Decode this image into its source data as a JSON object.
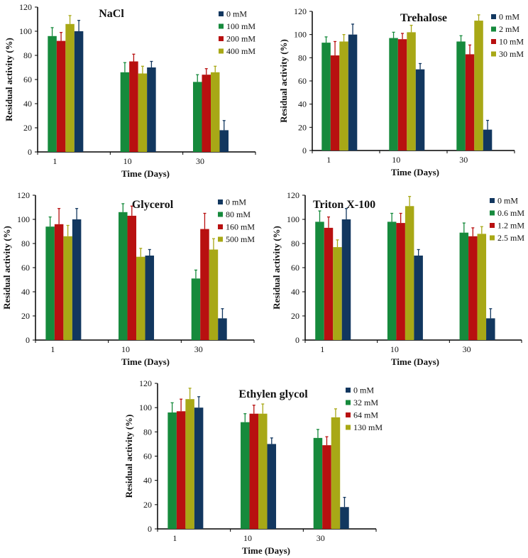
{
  "chart_data": [
    {
      "type": "bar",
      "title": "NaCl",
      "xlabel": "Time (Days)",
      "ylabel": "Residual activity (%)",
      "categories": [
        "1",
        "10",
        "30"
      ],
      "ylim": [
        0,
        120
      ],
      "yticks": [
        "0",
        "20",
        "40",
        "60",
        "80",
        "100",
        "120"
      ],
      "legend_position": "top-right",
      "series": [
        {
          "name": "0 mM",
          "color": "#12375f",
          "values": [
            100,
            70,
            18
          ],
          "errors": [
            9,
            5,
            8
          ]
        },
        {
          "name": "100 mM",
          "color": "#168a3c",
          "values": [
            96,
            66,
            58
          ],
          "errors": [
            7,
            8,
            6
          ]
        },
        {
          "name": "200 mM",
          "color": "#b81010",
          "values": [
            92,
            75,
            64
          ],
          "errors": [
            7,
            6,
            5
          ]
        },
        {
          "name": "400 mM",
          "color": "#a8a816",
          "values": [
            106,
            65,
            66
          ],
          "errors": [
            7,
            6,
            5
          ]
        }
      ]
    },
    {
      "type": "bar",
      "title": "Trehalose",
      "xlabel": "Time (Days)",
      "ylabel": "Residual activity (%)",
      "categories": [
        "1",
        "10",
        "30"
      ],
      "ylim": [
        0,
        120
      ],
      "yticks": [
        "0",
        "20",
        "40",
        "60",
        "80",
        "100",
        "120"
      ],
      "legend_position": "top-right",
      "series": [
        {
          "name": "0 mM",
          "color": "#12375f",
          "values": [
            100,
            70,
            18
          ],
          "errors": [
            9,
            5,
            8
          ]
        },
        {
          "name": "2 mM",
          "color": "#168a3c",
          "values": [
            93,
            97,
            94
          ],
          "errors": [
            5,
            5,
            5
          ]
        },
        {
          "name": "10 mM",
          "color": "#b81010",
          "values": [
            82,
            96,
            83
          ],
          "errors": [
            12,
            5,
            8
          ]
        },
        {
          "name": "30 mM",
          "color": "#a8a816",
          "values": [
            94,
            102,
            112
          ],
          "errors": [
            6,
            6,
            5
          ]
        }
      ]
    },
    {
      "type": "bar",
      "title": "Glycerol",
      "xlabel": "Time (Days)",
      "ylabel": "Residual activity (%)",
      "categories": [
        "1",
        "10",
        "30"
      ],
      "ylim": [
        0,
        120
      ],
      "yticks": [
        "0",
        "20",
        "40",
        "60",
        "80",
        "100",
        "120"
      ],
      "legend_position": "top-right",
      "series": [
        {
          "name": "0 mM",
          "color": "#12375f",
          "values": [
            100,
            70,
            18
          ],
          "errors": [
            9,
            5,
            8
          ]
        },
        {
          "name": "80 mM",
          "color": "#168a3c",
          "values": [
            94,
            106,
            51
          ],
          "errors": [
            8,
            7,
            7
          ]
        },
        {
          "name": "160 mM",
          "color": "#b81010",
          "values": [
            96,
            103,
            92
          ],
          "errors": [
            13,
            8,
            13
          ]
        },
        {
          "name": "500 mM",
          "color": "#a8a816",
          "values": [
            86,
            69,
            75
          ],
          "errors": [
            9,
            7,
            9
          ]
        }
      ]
    },
    {
      "type": "bar",
      "title": "Triton X-100",
      "xlabel": "Time (Days)",
      "ylabel": "Residual activity (%)",
      "categories": [
        "1",
        "10",
        "30"
      ],
      "ylim": [
        0,
        120
      ],
      "yticks": [
        "0",
        "20",
        "40",
        "60",
        "80",
        "100",
        "120"
      ],
      "legend_position": "top-right",
      "series": [
        {
          "name": "0 mM",
          "color": "#12375f",
          "values": [
            100,
            70,
            18
          ],
          "errors": [
            9,
            5,
            8
          ]
        },
        {
          "name": "0.6 mM",
          "color": "#168a3c",
          "values": [
            98,
            98,
            89
          ],
          "errors": [
            9,
            7,
            8
          ]
        },
        {
          "name": "1.2 mM",
          "color": "#b81010",
          "values": [
            93,
            97,
            86
          ],
          "errors": [
            9,
            8,
            7
          ]
        },
        {
          "name": "2.5 mM",
          "color": "#a8a816",
          "values": [
            77,
            111,
            88
          ],
          "errors": [
            6,
            8,
            6
          ]
        }
      ]
    },
    {
      "type": "bar",
      "title": "Ethylen glycol",
      "xlabel": "Time (Days)",
      "ylabel": "Residual activity (%)",
      "categories": [
        "1",
        "10",
        "30"
      ],
      "ylim": [
        0,
        120
      ],
      "yticks": [
        "0",
        "20",
        "40",
        "60",
        "80",
        "100",
        "120"
      ],
      "legend_position": "top-right",
      "series": [
        {
          "name": "0 mM",
          "color": "#12375f",
          "values": [
            100,
            70,
            18
          ],
          "errors": [
            9,
            5,
            8
          ]
        },
        {
          "name": "32 mM",
          "color": "#168a3c",
          "values": [
            96,
            88,
            75
          ],
          "errors": [
            8,
            7,
            7
          ]
        },
        {
          "name": "64 mM",
          "color": "#b81010",
          "values": [
            97,
            95,
            69
          ],
          "errors": [
            10,
            7,
            7
          ]
        },
        {
          "name": "130 mM",
          "color": "#a8a816",
          "values": [
            107,
            95,
            92
          ],
          "errors": [
            9,
            8,
            7
          ]
        }
      ]
    }
  ]
}
